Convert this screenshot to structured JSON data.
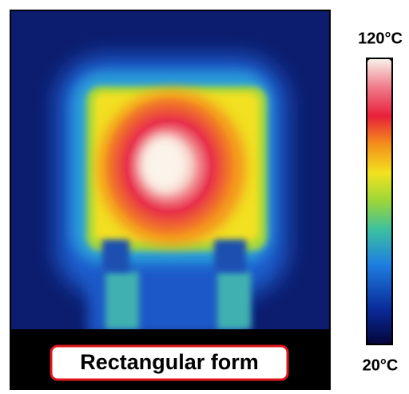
{
  "figure": {
    "caption": "Rectangular form"
  },
  "colorbar": {
    "top_label": "120°C",
    "bottom_label": "20°C"
  }
}
